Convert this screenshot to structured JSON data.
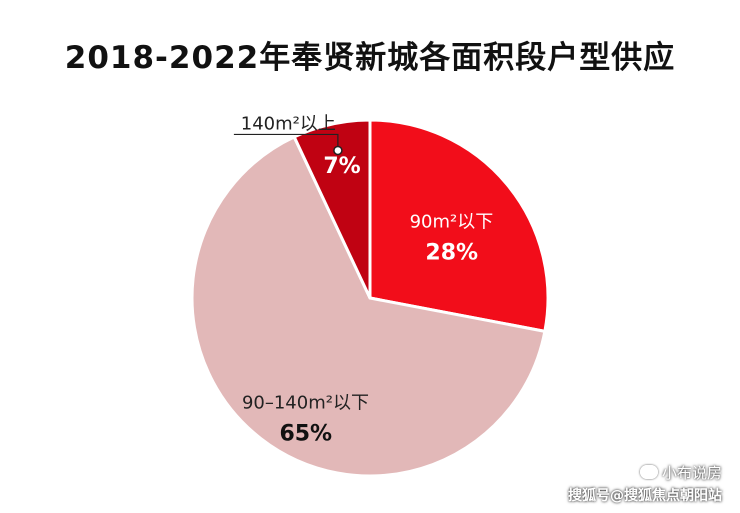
{
  "chart_data": {
    "type": "pie",
    "title": "2018-2022年奉贤新城各面积段户型供应",
    "slices": [
      {
        "label": "90m²以下",
        "value": 28,
        "display": "28%",
        "color": "#f20d1a"
      },
      {
        "label": "90–140m²以下",
        "value": 65,
        "display": "65%",
        "color": "#e2b8b8"
      },
      {
        "label": "140m²以上",
        "value": 7,
        "display": "7%",
        "color": "#c00212"
      }
    ]
  },
  "watermark": {
    "name": "小布说房",
    "source": "搜狐号@搜狐焦点朝阳站"
  }
}
